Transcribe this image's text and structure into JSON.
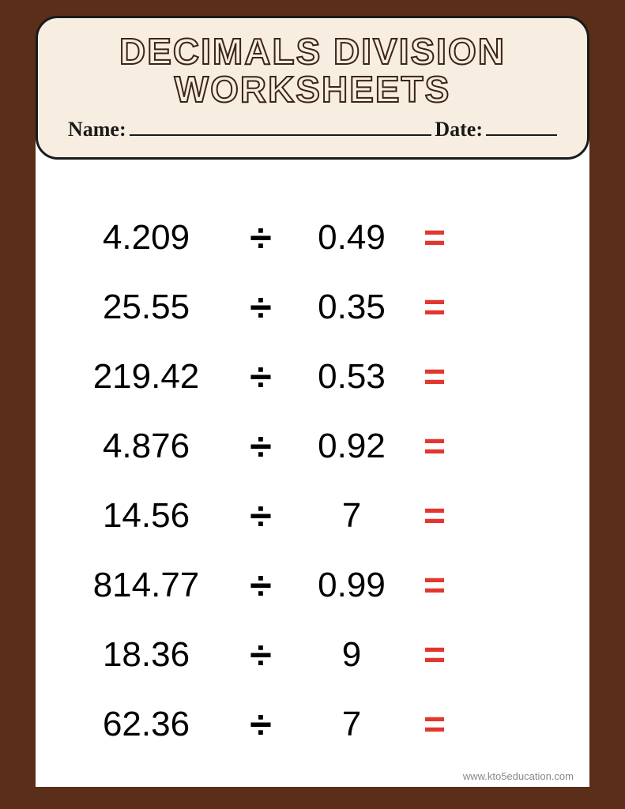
{
  "colors": {
    "page_background": "#5a2e18",
    "header_background": "#f7ede0",
    "header_border": "#1a1a1a",
    "panel_background": "#ffffff",
    "text_color": "#000000",
    "title_stroke": "#3a2518",
    "equals_color": "#e2372f",
    "footer_color": "#888888"
  },
  "typography": {
    "title_fontsize": 46,
    "title_weight": 900,
    "namedate_fontsize": 26,
    "problem_fontsize": 44,
    "operator_fontsize": 50,
    "equals_fontsize": 48,
    "footer_fontsize": 13
  },
  "header": {
    "title_line1": "DECIMALS DIVISION",
    "title_line2": "WORKSHEETS",
    "name_label": "Name:",
    "date_label": "Date:"
  },
  "symbols": {
    "division": "÷",
    "equals": "="
  },
  "problems": [
    {
      "dividend": "4.209",
      "divisor": "0.49"
    },
    {
      "dividend": "25.55",
      "divisor": "0.35"
    },
    {
      "dividend": "219.42",
      "divisor": "0.53"
    },
    {
      "dividend": "4.876",
      "divisor": "0.92"
    },
    {
      "dividend": "14.56",
      "divisor": "7"
    },
    {
      "dividend": "814.77",
      "divisor": "0.99"
    },
    {
      "dividend": "18.36",
      "divisor": "9"
    },
    {
      "dividend": "62.36",
      "divisor": "7"
    }
  ],
  "footer": "www.kto5education.com"
}
